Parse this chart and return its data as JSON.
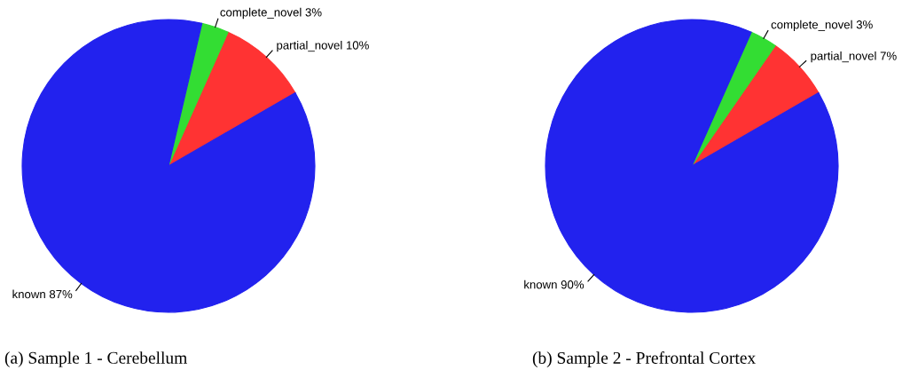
{
  "chart_data": [
    {
      "type": "pie",
      "title": "(a) Sample 1 - Cerebellum",
      "categories": [
        "partial_novel",
        "complete_novel",
        "known"
      ],
      "values": [
        10,
        3,
        87
      ],
      "value_labels": [
        "10%",
        "3%",
        "87%"
      ],
      "colors": [
        "#ff3333",
        "#33dd33",
        "#2222ee"
      ]
    },
    {
      "type": "pie",
      "title": "(b) Sample 2 - Prefrontal Cortex",
      "categories": [
        "partial_novel",
        "complete_novel",
        "known"
      ],
      "values": [
        7,
        3,
        90
      ],
      "value_labels": [
        "7%",
        "3%",
        "90%"
      ],
      "colors": [
        "#ff3333",
        "#33dd33",
        "#2222ee"
      ]
    }
  ]
}
